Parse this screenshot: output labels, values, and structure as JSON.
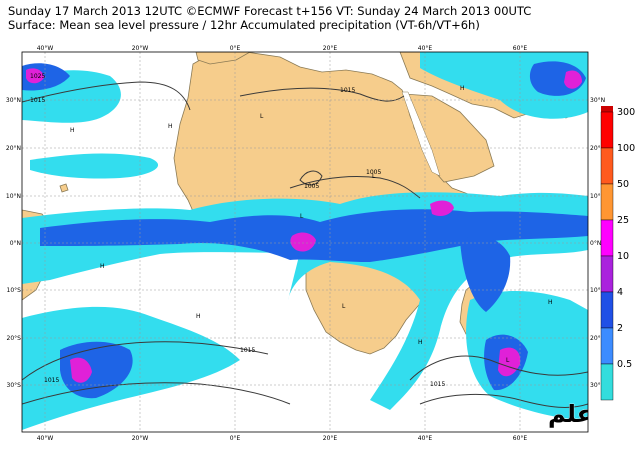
{
  "header": {
    "line1": "Sunday 17 March 2013 12UTC ©ECMWF Forecast t+156 VT: Sunday 24 March 2013 00UTC",
    "line2": "Surface: Mean sea level pressure / 12hr Accumulated precipitation (VT-6h/VT+6h)"
  },
  "colors": {
    "ocean": "#ffffff",
    "land": "#f6cd8c",
    "coast": "#8a7a55",
    "precip_light": "#33ddee",
    "precip_mid": "#1e64e6",
    "precip_heavy": "#1818c8",
    "precip_magenta": "#e021d8",
    "isobar": "#3a3a3a"
  },
  "lon_labels": [
    "40°W",
    "20°W",
    "0°E",
    "20°E",
    "40°E",
    "60°E"
  ],
  "lat_labels_left": [
    "30°N",
    "20°N",
    "10°N",
    "0°N",
    "10°S",
    "20°S",
    "30°S"
  ],
  "lat_labels_right": [
    "30°N",
    "20°N",
    "10°N",
    "0°N",
    "10°S",
    "20°S",
    "30°S"
  ],
  "isobar_labels": [
    "1025",
    "1015",
    "1015",
    "1005",
    "1005",
    "1015",
    "1015",
    "1015"
  ],
  "legend": [
    {
      "label": "300",
      "color": "#ff0000"
    },
    {
      "label": "100",
      "color": "#ff5a1e"
    },
    {
      "label": "50",
      "color": "#ff9632"
    },
    {
      "label": "25",
      "color": "#ff00ff"
    },
    {
      "label": "10",
      "color": "#aa22dd"
    },
    {
      "label": "4",
      "color": "#2050e6"
    },
    {
      "label": "2",
      "color": "#3c8cff"
    },
    {
      "label": "0.5",
      "color": "#33dddd"
    }
  ],
  "legend_top_color": "#cc0000",
  "watermark": "توقعات الامطار الاوربي-والله اعلم"
}
